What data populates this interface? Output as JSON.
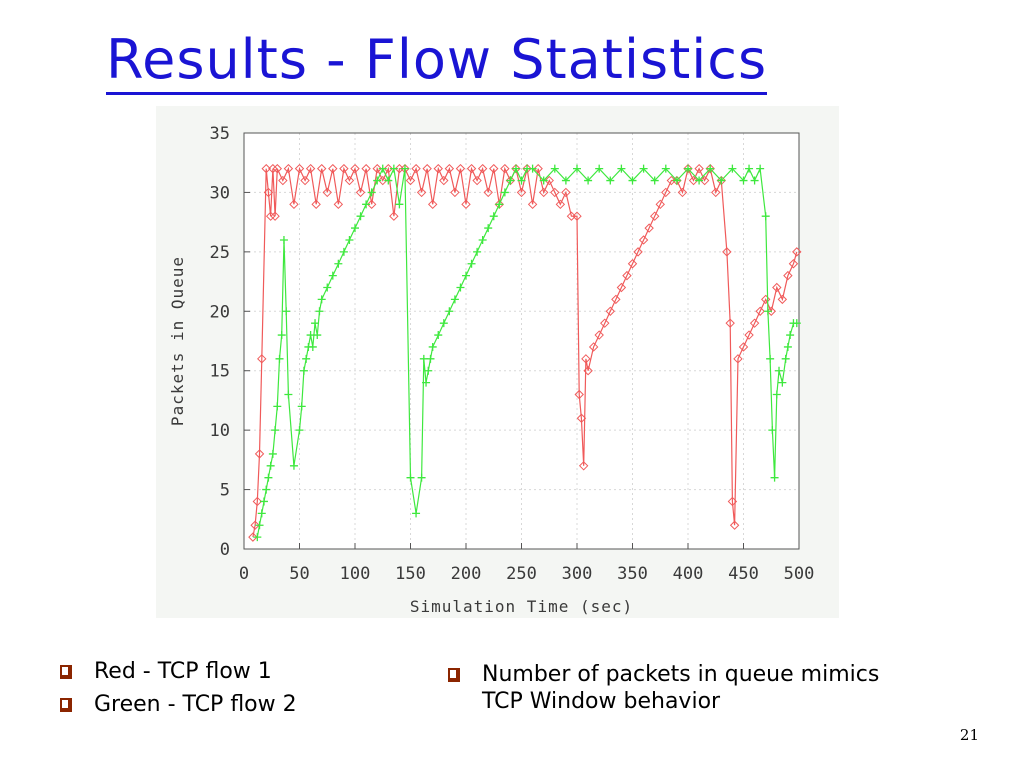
{
  "title": "Results - Flow Statistics",
  "bullets_left": [
    "Red - TCP flow 1",
    "Green - TCP flow 2"
  ],
  "bullets_right": [
    "Number of packets in queue mimics TCP Window behavior"
  ],
  "page_number": "21",
  "chart_data": {
    "type": "line",
    "title": "",
    "xlabel": "Simulation Time (sec)",
    "ylabel": "Packets in Queue",
    "xlim": [
      0,
      500
    ],
    "ylim": [
      0,
      35
    ],
    "xticks": [
      0,
      50,
      100,
      150,
      200,
      250,
      300,
      350,
      400,
      450,
      500
    ],
    "yticks": [
      0,
      5,
      10,
      15,
      20,
      25,
      30,
      35
    ],
    "grid": true,
    "legend": "none",
    "series": [
      {
        "color": "#f05a5a",
        "x": [
          8,
          10,
          12,
          14,
          16,
          20,
          22,
          24,
          26,
          28,
          30,
          35,
          40,
          45,
          50,
          55,
          60,
          65,
          70,
          75,
          80,
          85,
          90,
          95,
          100,
          105,
          110,
          115,
          120,
          125,
          130,
          135,
          140,
          145,
          150,
          155,
          160,
          165,
          170,
          175,
          180,
          185,
          190,
          195,
          200,
          205,
          210,
          215,
          220,
          225,
          230,
          235,
          240,
          245,
          250,
          255,
          260,
          265,
          270,
          275,
          280,
          285,
          290,
          295,
          300,
          302,
          304,
          306,
          308,
          310,
          315,
          320,
          325,
          330,
          335,
          340,
          345,
          350,
          355,
          360,
          365,
          370,
          375,
          380,
          385,
          390,
          395,
          400,
          405,
          410,
          415,
          420,
          425,
          430,
          435,
          438,
          440,
          442,
          445,
          450,
          455,
          460,
          465,
          470,
          475,
          480,
          485,
          490,
          495,
          498
        ],
        "y": [
          1,
          2,
          4,
          8,
          16,
          32,
          30,
          28,
          32,
          28,
          32,
          31,
          32,
          29,
          32,
          31,
          32,
          29,
          32,
          30,
          32,
          29,
          32,
          31,
          32,
          30,
          32,
          29,
          32,
          31,
          32,
          28,
          32,
          32,
          31,
          32,
          30,
          32,
          29,
          32,
          31,
          32,
          30,
          32,
          29,
          32,
          31,
          32,
          30,
          32,
          29,
          32,
          31,
          32,
          30,
          32,
          29,
          32,
          30,
          31,
          30,
          29,
          30,
          28,
          28,
          13,
          11,
          7,
          16,
          15,
          17,
          18,
          19,
          20,
          21,
          22,
          23,
          24,
          25,
          26,
          27,
          28,
          29,
          30,
          31,
          31,
          30,
          32,
          31,
          32,
          31,
          32,
          30,
          31,
          25,
          19,
          4,
          2,
          16,
          17,
          18,
          19,
          20,
          21,
          20,
          22,
          21,
          23,
          24,
          25
        ]
      },
      {
        "color": "#3ee83e",
        "x": [
          12,
          14,
          16,
          18,
          20,
          22,
          24,
          26,
          28,
          30,
          32,
          34,
          36,
          38,
          40,
          45,
          50,
          52,
          54,
          56,
          58,
          60,
          62,
          64,
          66,
          68,
          70,
          75,
          80,
          85,
          90,
          95,
          100,
          105,
          110,
          115,
          120,
          125,
          130,
          135,
          140,
          145,
          150,
          155,
          160,
          162,
          164,
          166,
          168,
          170,
          175,
          180,
          185,
          190,
          195,
          200,
          205,
          210,
          215,
          220,
          225,
          230,
          235,
          240,
          245,
          250,
          255,
          260,
          270,
          280,
          290,
          300,
          310,
          320,
          330,
          340,
          350,
          360,
          370,
          380,
          390,
          400,
          410,
          420,
          430,
          440,
          450,
          455,
          460,
          465,
          470,
          472,
          474,
          476,
          478,
          480,
          482,
          485,
          488,
          490,
          492,
          495,
          498
        ],
        "y": [
          1,
          2,
          3,
          4,
          5,
          6,
          7,
          8,
          10,
          12,
          16,
          18,
          26,
          20,
          13,
          7,
          10,
          12,
          15,
          16,
          17,
          18,
          17,
          19,
          18,
          20,
          21,
          22,
          23,
          24,
          25,
          26,
          27,
          28,
          29,
          30,
          31,
          32,
          31,
          32,
          29,
          32,
          6,
          3,
          6,
          16,
          14,
          15,
          16,
          17,
          18,
          19,
          20,
          21,
          22,
          23,
          24,
          25,
          26,
          27,
          28,
          29,
          30,
          31,
          32,
          31,
          32,
          32,
          31,
          32,
          31,
          32,
          31,
          32,
          31,
          32,
          31,
          32,
          31,
          32,
          31,
          32,
          31,
          32,
          31,
          32,
          31,
          32,
          31,
          32,
          28,
          20,
          16,
          10,
          6,
          13,
          15,
          14,
          16,
          17,
          18,
          19,
          19
        ]
      }
    ]
  }
}
